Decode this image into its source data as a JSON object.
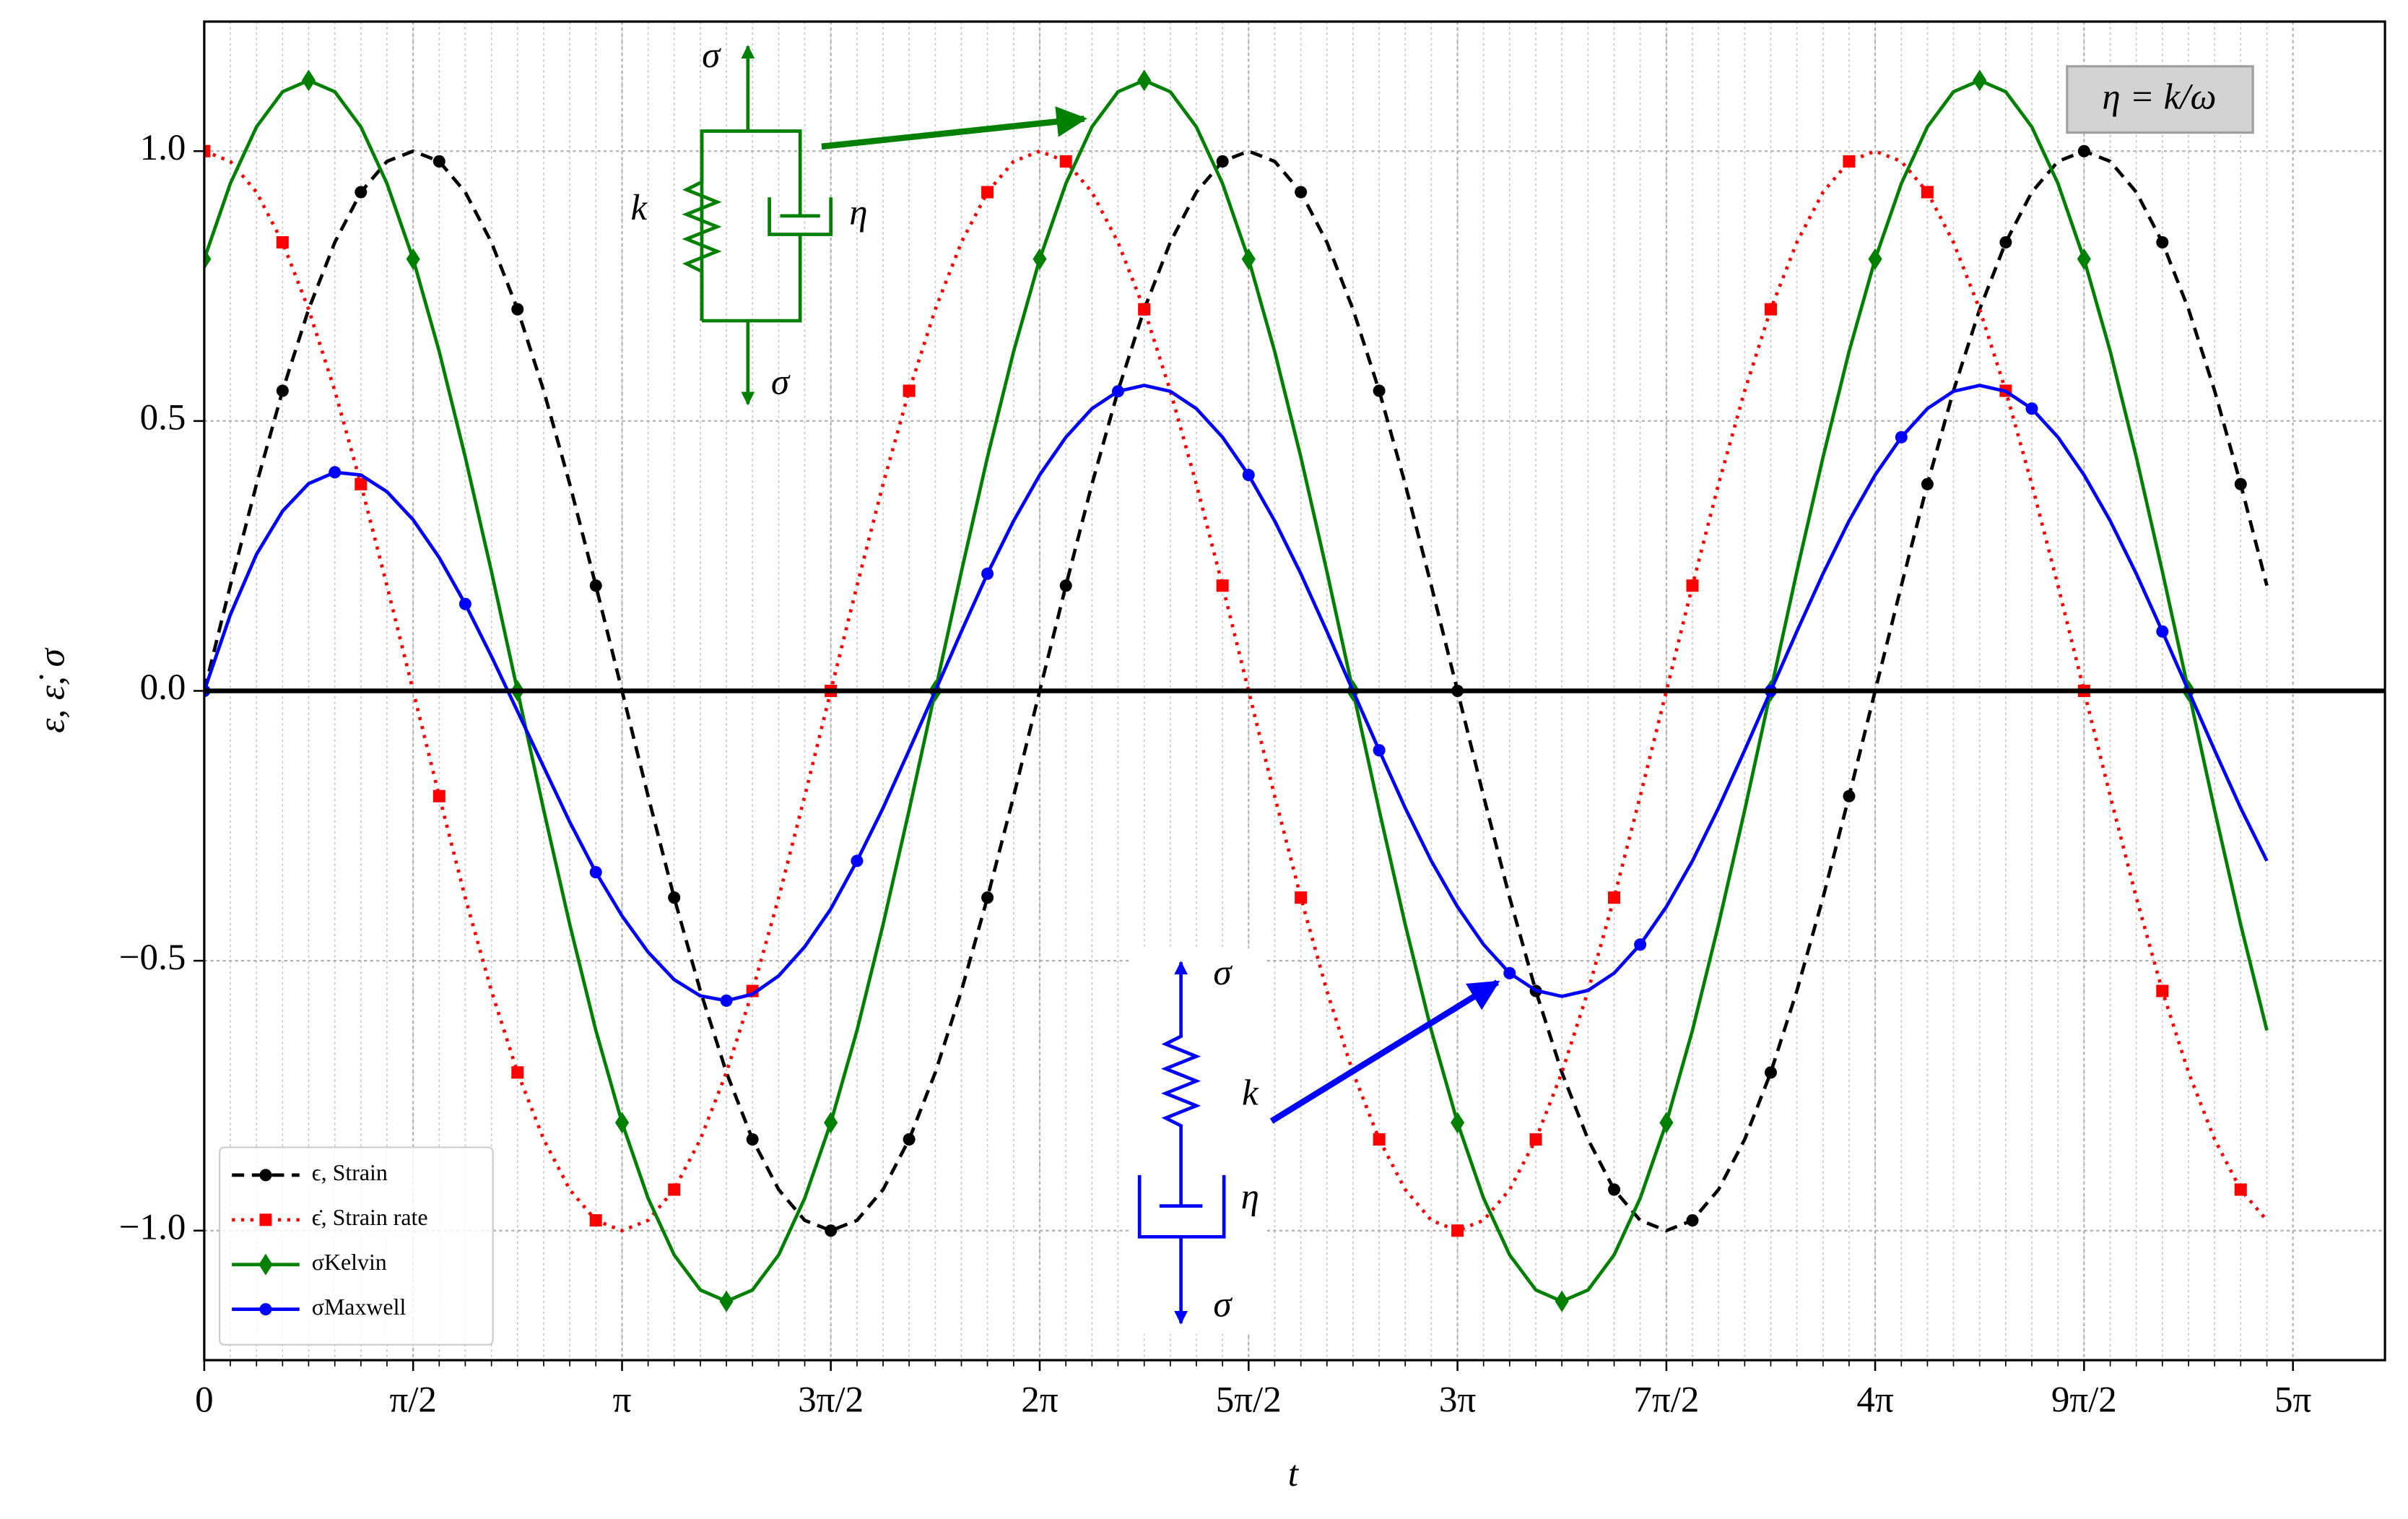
{
  "chart_data": {
    "type": "line",
    "xlabel": "t",
    "ylabel": "ε, ε̇, σ",
    "xlim": [
      0,
      16.4
    ],
    "ylim": [
      -1.24,
      1.24
    ],
    "xticks": [
      0,
      {
        "value": 1.571,
        "label": "π/2"
      },
      {
        "value": 3.142,
        "label": "π"
      },
      {
        "value": 4.712,
        "label": "3π/2"
      },
      {
        "value": 6.283,
        "label": "2π"
      },
      {
        "value": 7.854,
        "label": "5π/2"
      },
      {
        "value": 9.425,
        "label": "3π"
      },
      {
        "value": 10.996,
        "label": "7π/2"
      },
      {
        "value": 12.566,
        "label": "4π"
      },
      {
        "value": 14.137,
        "label": "9π/2"
      },
      {
        "value": 15.708,
        "label": "5π"
      }
    ],
    "yticks": [
      {
        "value": -1.0,
        "label": "−1.0"
      },
      {
        "value": -0.5,
        "label": "−0.5"
      },
      {
        "value": 0.0,
        "label": "0.0"
      },
      {
        "value": 0.5,
        "label": "0.5"
      },
      {
        "value": 1.0,
        "label": "1.0"
      }
    ],
    "grid": true,
    "minor_grid": true,
    "legend": "lower left",
    "x": [
      0,
      0.196,
      0.393,
      0.589,
      0.785,
      0.982,
      1.178,
      1.374,
      1.571,
      1.767,
      1.963,
      2.16,
      2.356,
      2.553,
      2.749,
      2.945,
      3.142,
      3.338,
      3.534,
      3.731,
      3.927,
      4.123,
      4.32,
      4.516,
      4.712,
      4.909,
      5.105,
      5.301,
      5.498,
      5.694,
      5.89,
      6.087,
      6.283,
      6.48,
      6.676,
      6.872,
      7.069,
      7.265,
      7.461,
      7.658,
      7.854,
      8.05,
      8.247,
      8.443,
      8.639,
      8.836,
      9.032,
      9.228,
      9.425,
      9.621,
      9.817,
      10.014,
      10.21,
      10.407,
      10.603,
      10.799,
      10.996,
      11.192,
      11.388,
      11.585,
      11.781,
      11.977,
      12.174,
      12.37,
      12.566,
      12.763,
      12.959,
      13.155,
      13.352,
      13.548,
      13.744,
      13.941,
      14.137,
      14.334,
      14.53,
      14.726,
      14.923,
      15.119,
      15.315,
      15.512
    ],
    "series": [
      {
        "name": "ϵ, Strain",
        "color": "#000000",
        "linestyle": "dashed",
        "marker": "circle",
        "markevery": 3,
        "values": [
          0,
          0.195,
          0.383,
          0.556,
          0.707,
          0.831,
          0.924,
          0.981,
          1,
          0.981,
          0.924,
          0.831,
          0.707,
          0.556,
          0.383,
          0.195,
          0,
          -0.195,
          -0.383,
          -0.556,
          -0.707,
          -0.831,
          -0.924,
          -0.981,
          -1,
          -0.981,
          -0.924,
          -0.831,
          -0.707,
          -0.556,
          -0.383,
          -0.195,
          0,
          0.195,
          0.383,
          0.556,
          0.707,
          0.831,
          0.924,
          0.981,
          1,
          0.981,
          0.924,
          0.831,
          0.707,
          0.556,
          0.383,
          0.195,
          0,
          -0.195,
          -0.383,
          -0.556,
          -0.707,
          -0.831,
          -0.924,
          -0.981,
          -1,
          -0.981,
          -0.924,
          -0.831,
          -0.707,
          -0.556,
          -0.383,
          -0.195,
          0,
          0.195,
          0.383,
          0.556,
          0.707,
          0.831,
          0.924,
          0.981,
          1,
          0.981,
          0.924,
          0.831,
          0.707,
          0.556,
          0.383,
          0.195
        ]
      },
      {
        "name": "ϵ̇, Strain rate",
        "color": "#ff0000",
        "linestyle": "dotted",
        "marker": "square",
        "markevery": 3,
        "values": [
          1,
          0.981,
          0.924,
          0.831,
          0.707,
          0.556,
          0.383,
          0.195,
          0,
          -0.195,
          -0.383,
          -0.556,
          -0.707,
          -0.831,
          -0.924,
          -0.981,
          -1,
          -0.981,
          -0.924,
          -0.831,
          -0.707,
          -0.556,
          -0.383,
          -0.195,
          0,
          0.195,
          0.383,
          0.556,
          0.707,
          0.831,
          0.924,
          0.981,
          1,
          0.981,
          0.924,
          0.831,
          0.707,
          0.556,
          0.383,
          0.195,
          0,
          -0.195,
          -0.383,
          -0.556,
          -0.707,
          -0.831,
          -0.924,
          -0.981,
          -1,
          -0.981,
          -0.924,
          -0.831,
          -0.707,
          -0.556,
          -0.383,
          -0.195,
          0,
          0.195,
          0.383,
          0.556,
          0.707,
          0.831,
          0.924,
          0.981,
          1,
          0.981,
          0.924,
          0.831,
          0.707,
          0.556,
          0.383,
          0.195,
          0,
          -0.195,
          -0.383,
          -0.556,
          -0.707,
          -0.831,
          -0.924,
          -0.981
        ]
      },
      {
        "name": "σKelvin",
        "color": "#008000",
        "linestyle": "solid",
        "marker": "diamond",
        "markevery": 4,
        "values": [
          0.8,
          0.94,
          1.045,
          1.11,
          1.131,
          1.11,
          1.045,
          0.94,
          0.8,
          0.629,
          0.433,
          0.221,
          0,
          -0.221,
          -0.433,
          -0.629,
          -0.8,
          -0.94,
          -1.045,
          -1.11,
          -1.131,
          -1.11,
          -1.045,
          -0.94,
          -0.8,
          -0.629,
          -0.433,
          -0.221,
          0,
          0.221,
          0.433,
          0.629,
          0.8,
          0.94,
          1.045,
          1.11,
          1.131,
          1.11,
          1.045,
          0.94,
          0.8,
          0.629,
          0.433,
          0.221,
          0,
          -0.221,
          -0.433,
          -0.629,
          -0.8,
          -0.94,
          -1.045,
          -1.11,
          -1.131,
          -1.11,
          -1.045,
          -0.94,
          -0.8,
          -0.629,
          -0.433,
          -0.221,
          0,
          0.221,
          0.433,
          0.629,
          0.8,
          0.94,
          1.045,
          1.11,
          1.131,
          1.11,
          1.045,
          0.94,
          0.8,
          0.629,
          0.433,
          0.221,
          0,
          -0.221,
          -0.433,
          -0.629
        ]
      },
      {
        "name": "σMaxwell",
        "color": "#0000ff",
        "linestyle": "solid",
        "marker": "circle",
        "markevery": 5,
        "values": [
          0,
          0.141,
          0.253,
          0.333,
          0.384,
          0.405,
          0.4,
          0.369,
          0.317,
          0.247,
          0.161,
          0.064,
          -0.038,
          -0.141,
          -0.243,
          -0.336,
          -0.417,
          -0.484,
          -0.535,
          -0.565,
          -0.574,
          -0.562,
          -0.528,
          -0.474,
          -0.404,
          -0.315,
          -0.217,
          -0.11,
          0,
          0.11,
          0.217,
          0.315,
          0.4,
          0.47,
          0.523,
          0.555,
          0.566,
          0.555,
          0.523,
          0.47,
          0.4,
          0.315,
          0.217,
          0.11,
          0,
          -0.11,
          -0.217,
          -0.315,
          -0.4,
          -0.47,
          -0.523,
          -0.555,
          -0.566,
          -0.555,
          -0.523,
          -0.47,
          -0.4,
          -0.315,
          -0.217,
          -0.11,
          0,
          0.11,
          0.217,
          0.315,
          0.4,
          0.47,
          0.523,
          0.555,
          0.566,
          0.555,
          0.523,
          0.47,
          0.4,
          0.315,
          0.217,
          0.11,
          0,
          -0.11,
          -0.217,
          -0.315
        ]
      }
    ],
    "annotations": {
      "eta_box": "η = k/ω",
      "kelvin_diagram": {
        "top": "σ",
        "spring": "k",
        "dashpot": "η",
        "bottom": "σ"
      },
      "maxwell_diagram": {
        "top": "σ",
        "spring": "k",
        "dashpot": "η",
        "bottom": "σ"
      }
    }
  }
}
